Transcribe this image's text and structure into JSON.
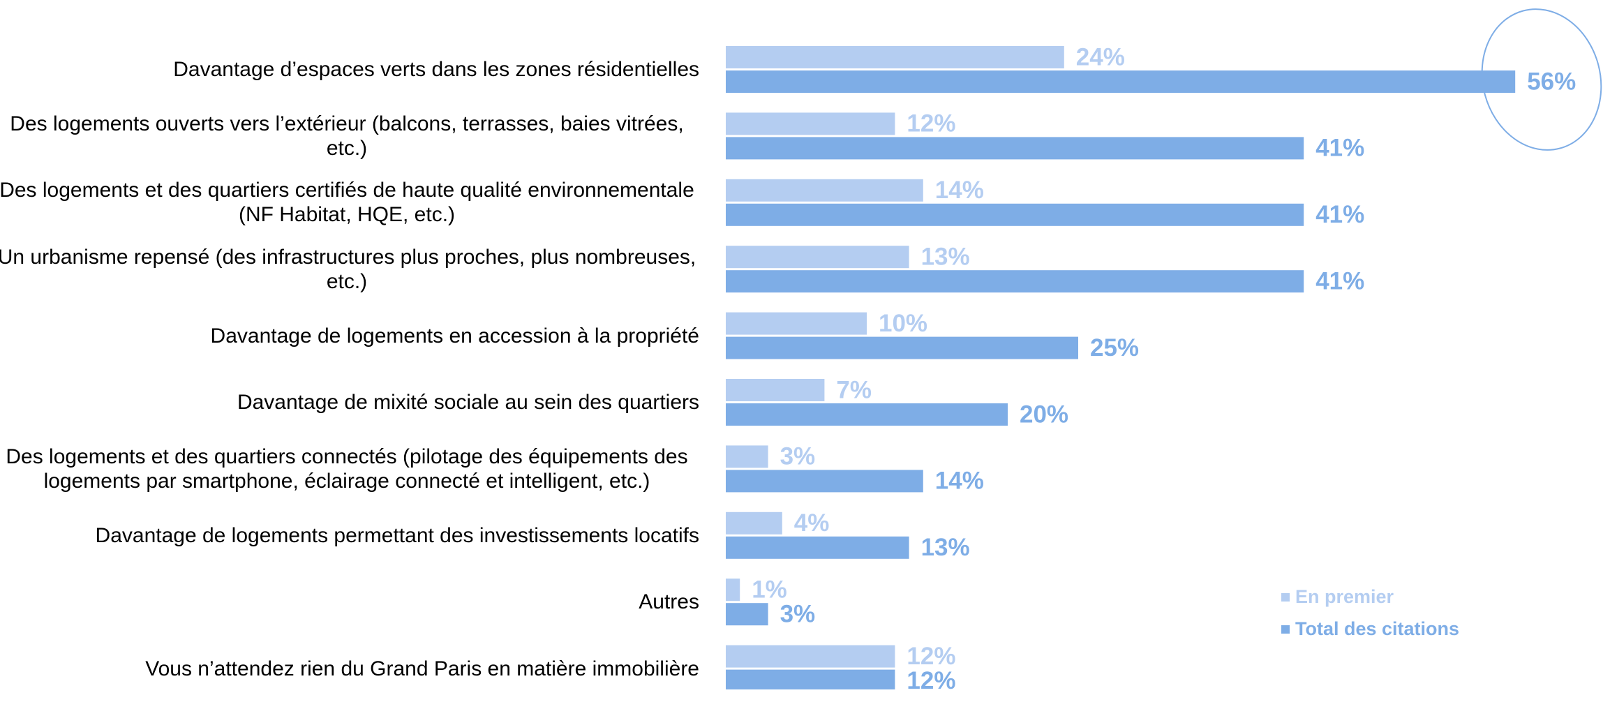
{
  "chart_data": {
    "type": "hbar",
    "categories": [
      "Davantage d’espaces verts dans les zones résidentielles",
      "Des logements ouverts vers l’extérieur (balcons, terrasses, baies vitrées, etc.)",
      "Des logements et des quartiers certifiés de haute qualité environnementale (NF Habitat, HQE, etc.)",
      "Un urbanisme repensé (des infrastructures plus proches, plus nombreuses, etc.)",
      "Davantage de logements en accession à la propriété",
      "Davantage de mixité sociale au sein des quartiers",
      "Des logements et des quartiers connectés (pilotage des équipements des logements par smartphone, éclairage connecté et intelligent, etc.)",
      "Davantage de logements permettant des investissements locatifs",
      "Autres",
      "Vous n’attendez rien du Grand Paris en matière immobilière"
    ],
    "series": [
      {
        "name": "En premier",
        "color": "#b4cdf1",
        "values": [
          24,
          12,
          14,
          13,
          10,
          7,
          3,
          4,
          1,
          12
        ],
        "value_labels": [
          "24%",
          "12%",
          "14%",
          "13%",
          "10%",
          "7%",
          "3%",
          "4%",
          "1%",
          "12%"
        ]
      },
      {
        "name": "Total des citations",
        "color": "#7eade6",
        "values": [
          56,
          41,
          41,
          41,
          25,
          20,
          14,
          13,
          3,
          12
        ],
        "value_labels": [
          "56%",
          "41%",
          "41%",
          "41%",
          "25%",
          "20%",
          "14%",
          "13%",
          "3%",
          "12%"
        ]
      }
    ]
  }
}
